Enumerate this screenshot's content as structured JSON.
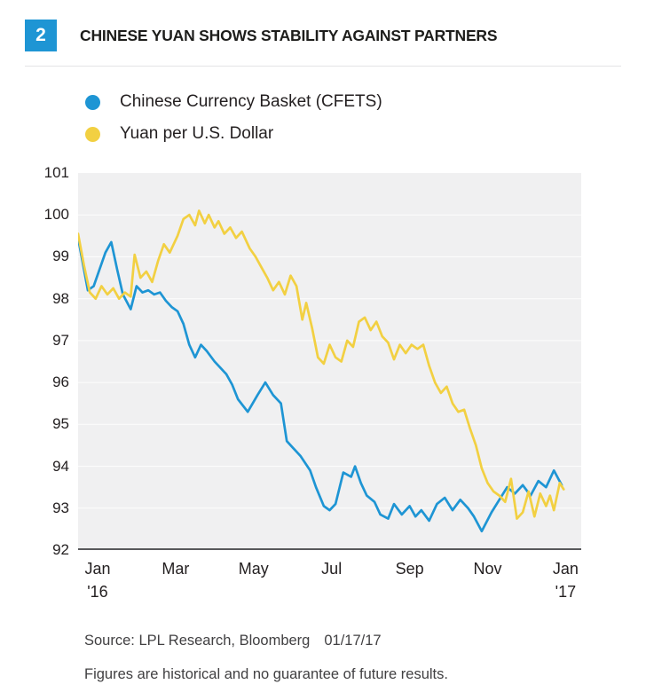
{
  "header": {
    "figure_number": "2",
    "title": "CHINESE YUAN SHOWS STABILITY AGAINST PARTNERS"
  },
  "colors": {
    "accent_blue": "#1e95d4",
    "accent_yellow": "#f2d042",
    "plot_background": "#f0f0f1",
    "axis_line": "#58595b",
    "text": "#231f20"
  },
  "legend": {
    "items": [
      {
        "label": "Chinese Currency Basket (CFETS)",
        "color": "#1e95d4"
      },
      {
        "label": "Yuan per U.S. Dollar",
        "color": "#f2d042"
      }
    ]
  },
  "footer": {
    "source": "Source: LPL Research, Bloomberg",
    "date": "01/17/17",
    "disclaimer": "Figures are historical and no guarantee of future results."
  },
  "chart_data": {
    "type": "line",
    "title": "CHINESE YUAN SHOWS STABILITY AGAINST PARTNERS",
    "xlabel": "",
    "ylabel": "",
    "x_unit": "months since Jan 2016",
    "xlim": [
      0,
      12.9
    ],
    "ylim": [
      92,
      101
    ],
    "grid": "horizontal-white",
    "legend_position": "top-left",
    "yticks": [
      92,
      93,
      94,
      95,
      96,
      97,
      98,
      99,
      100,
      101
    ],
    "xticks": [
      {
        "x": 0.5,
        "label": "Jan",
        "sub": "'16"
      },
      {
        "x": 2.5,
        "label": "Mar",
        "sub": ""
      },
      {
        "x": 4.5,
        "label": "May",
        "sub": ""
      },
      {
        "x": 6.5,
        "label": "Jul",
        "sub": ""
      },
      {
        "x": 8.5,
        "label": "Sep",
        "sub": ""
      },
      {
        "x": 10.5,
        "label": "Nov",
        "sub": ""
      },
      {
        "x": 12.5,
        "label": "Jan",
        "sub": "'17"
      }
    ],
    "series": [
      {
        "id": "cfets",
        "name": "Chinese Currency Basket (CFETS)",
        "color": "#1e95d4",
        "points": [
          [
            0.0,
            99.45
          ],
          [
            0.15,
            98.7
          ],
          [
            0.25,
            98.2
          ],
          [
            0.4,
            98.3
          ],
          [
            0.55,
            98.7
          ],
          [
            0.7,
            99.1
          ],
          [
            0.85,
            99.35
          ],
          [
            1.0,
            98.7
          ],
          [
            1.15,
            98.1
          ],
          [
            1.35,
            97.75
          ],
          [
            1.5,
            98.3
          ],
          [
            1.65,
            98.15
          ],
          [
            1.8,
            98.2
          ],
          [
            1.95,
            98.1
          ],
          [
            2.1,
            98.15
          ],
          [
            2.25,
            97.95
          ],
          [
            2.4,
            97.8
          ],
          [
            2.55,
            97.7
          ],
          [
            2.7,
            97.4
          ],
          [
            2.85,
            96.9
          ],
          [
            3.0,
            96.6
          ],
          [
            3.15,
            96.9
          ],
          [
            3.3,
            96.75
          ],
          [
            3.5,
            96.5
          ],
          [
            3.65,
            96.35
          ],
          [
            3.8,
            96.2
          ],
          [
            3.95,
            95.95
          ],
          [
            4.1,
            95.6
          ],
          [
            4.35,
            95.3
          ],
          [
            4.6,
            95.7
          ],
          [
            4.8,
            96.0
          ],
          [
            5.0,
            95.7
          ],
          [
            5.2,
            95.5
          ],
          [
            5.35,
            94.6
          ],
          [
            5.5,
            94.45
          ],
          [
            5.7,
            94.25
          ],
          [
            5.95,
            93.9
          ],
          [
            6.1,
            93.5
          ],
          [
            6.3,
            93.05
          ],
          [
            6.45,
            92.95
          ],
          [
            6.6,
            93.1
          ],
          [
            6.8,
            93.85
          ],
          [
            7.0,
            93.75
          ],
          [
            7.1,
            94.0
          ],
          [
            7.25,
            93.6
          ],
          [
            7.4,
            93.3
          ],
          [
            7.6,
            93.15
          ],
          [
            7.75,
            92.85
          ],
          [
            7.95,
            92.75
          ],
          [
            8.1,
            93.1
          ],
          [
            8.3,
            92.85
          ],
          [
            8.5,
            93.05
          ],
          [
            8.65,
            92.8
          ],
          [
            8.8,
            92.95
          ],
          [
            9.0,
            92.7
          ],
          [
            9.2,
            93.1
          ],
          [
            9.4,
            93.25
          ],
          [
            9.6,
            92.95
          ],
          [
            9.8,
            93.2
          ],
          [
            10.0,
            93.0
          ],
          [
            10.15,
            92.8
          ],
          [
            10.35,
            92.45
          ],
          [
            10.6,
            92.9
          ],
          [
            10.8,
            93.2
          ],
          [
            11.0,
            93.5
          ],
          [
            11.2,
            93.35
          ],
          [
            11.4,
            93.55
          ],
          [
            11.6,
            93.3
          ],
          [
            11.8,
            93.65
          ],
          [
            12.0,
            93.5
          ],
          [
            12.2,
            93.9
          ],
          [
            12.4,
            93.55
          ]
        ]
      },
      {
        "id": "usd",
        "name": "Yuan per U.S. Dollar",
        "color": "#f2d042",
        "points": [
          [
            0.0,
            99.55
          ],
          [
            0.15,
            98.8
          ],
          [
            0.3,
            98.15
          ],
          [
            0.45,
            98.0
          ],
          [
            0.6,
            98.3
          ],
          [
            0.75,
            98.1
          ],
          [
            0.9,
            98.25
          ],
          [
            1.05,
            98.0
          ],
          [
            1.2,
            98.15
          ],
          [
            1.35,
            98.05
          ],
          [
            1.45,
            99.05
          ],
          [
            1.6,
            98.5
          ],
          [
            1.75,
            98.65
          ],
          [
            1.9,
            98.4
          ],
          [
            2.05,
            98.9
          ],
          [
            2.2,
            99.3
          ],
          [
            2.35,
            99.1
          ],
          [
            2.55,
            99.5
          ],
          [
            2.7,
            99.9
          ],
          [
            2.85,
            100.0
          ],
          [
            3.0,
            99.75
          ],
          [
            3.1,
            100.1
          ],
          [
            3.25,
            99.8
          ],
          [
            3.35,
            100.0
          ],
          [
            3.5,
            99.7
          ],
          [
            3.6,
            99.85
          ],
          [
            3.75,
            99.55
          ],
          [
            3.9,
            99.7
          ],
          [
            4.05,
            99.45
          ],
          [
            4.2,
            99.6
          ],
          [
            4.4,
            99.2
          ],
          [
            4.55,
            99.0
          ],
          [
            4.7,
            98.75
          ],
          [
            4.85,
            98.5
          ],
          [
            5.0,
            98.2
          ],
          [
            5.15,
            98.4
          ],
          [
            5.3,
            98.1
          ],
          [
            5.45,
            98.55
          ],
          [
            5.6,
            98.3
          ],
          [
            5.75,
            97.5
          ],
          [
            5.85,
            97.9
          ],
          [
            6.0,
            97.3
          ],
          [
            6.15,
            96.6
          ],
          [
            6.3,
            96.45
          ],
          [
            6.45,
            96.9
          ],
          [
            6.6,
            96.6
          ],
          [
            6.75,
            96.5
          ],
          [
            6.9,
            97.0
          ],
          [
            7.05,
            96.85
          ],
          [
            7.2,
            97.45
          ],
          [
            7.35,
            97.55
          ],
          [
            7.5,
            97.25
          ],
          [
            7.65,
            97.45
          ],
          [
            7.8,
            97.1
          ],
          [
            7.95,
            96.95
          ],
          [
            8.1,
            96.55
          ],
          [
            8.25,
            96.9
          ],
          [
            8.4,
            96.7
          ],
          [
            8.55,
            96.9
          ],
          [
            8.7,
            96.8
          ],
          [
            8.85,
            96.9
          ],
          [
            9.0,
            96.4
          ],
          [
            9.15,
            96.0
          ],
          [
            9.3,
            95.75
          ],
          [
            9.45,
            95.9
          ],
          [
            9.6,
            95.5
          ],
          [
            9.75,
            95.3
          ],
          [
            9.9,
            95.35
          ],
          [
            10.05,
            94.9
          ],
          [
            10.2,
            94.5
          ],
          [
            10.35,
            93.95
          ],
          [
            10.5,
            93.6
          ],
          [
            10.65,
            93.4
          ],
          [
            10.8,
            93.3
          ],
          [
            10.95,
            93.15
          ],
          [
            11.1,
            93.7
          ],
          [
            11.25,
            92.75
          ],
          [
            11.4,
            92.9
          ],
          [
            11.55,
            93.4
          ],
          [
            11.7,
            92.8
          ],
          [
            11.85,
            93.35
          ],
          [
            12.0,
            93.05
          ],
          [
            12.1,
            93.3
          ],
          [
            12.2,
            92.95
          ],
          [
            12.35,
            93.6
          ],
          [
            12.45,
            93.45
          ]
        ]
      }
    ]
  }
}
